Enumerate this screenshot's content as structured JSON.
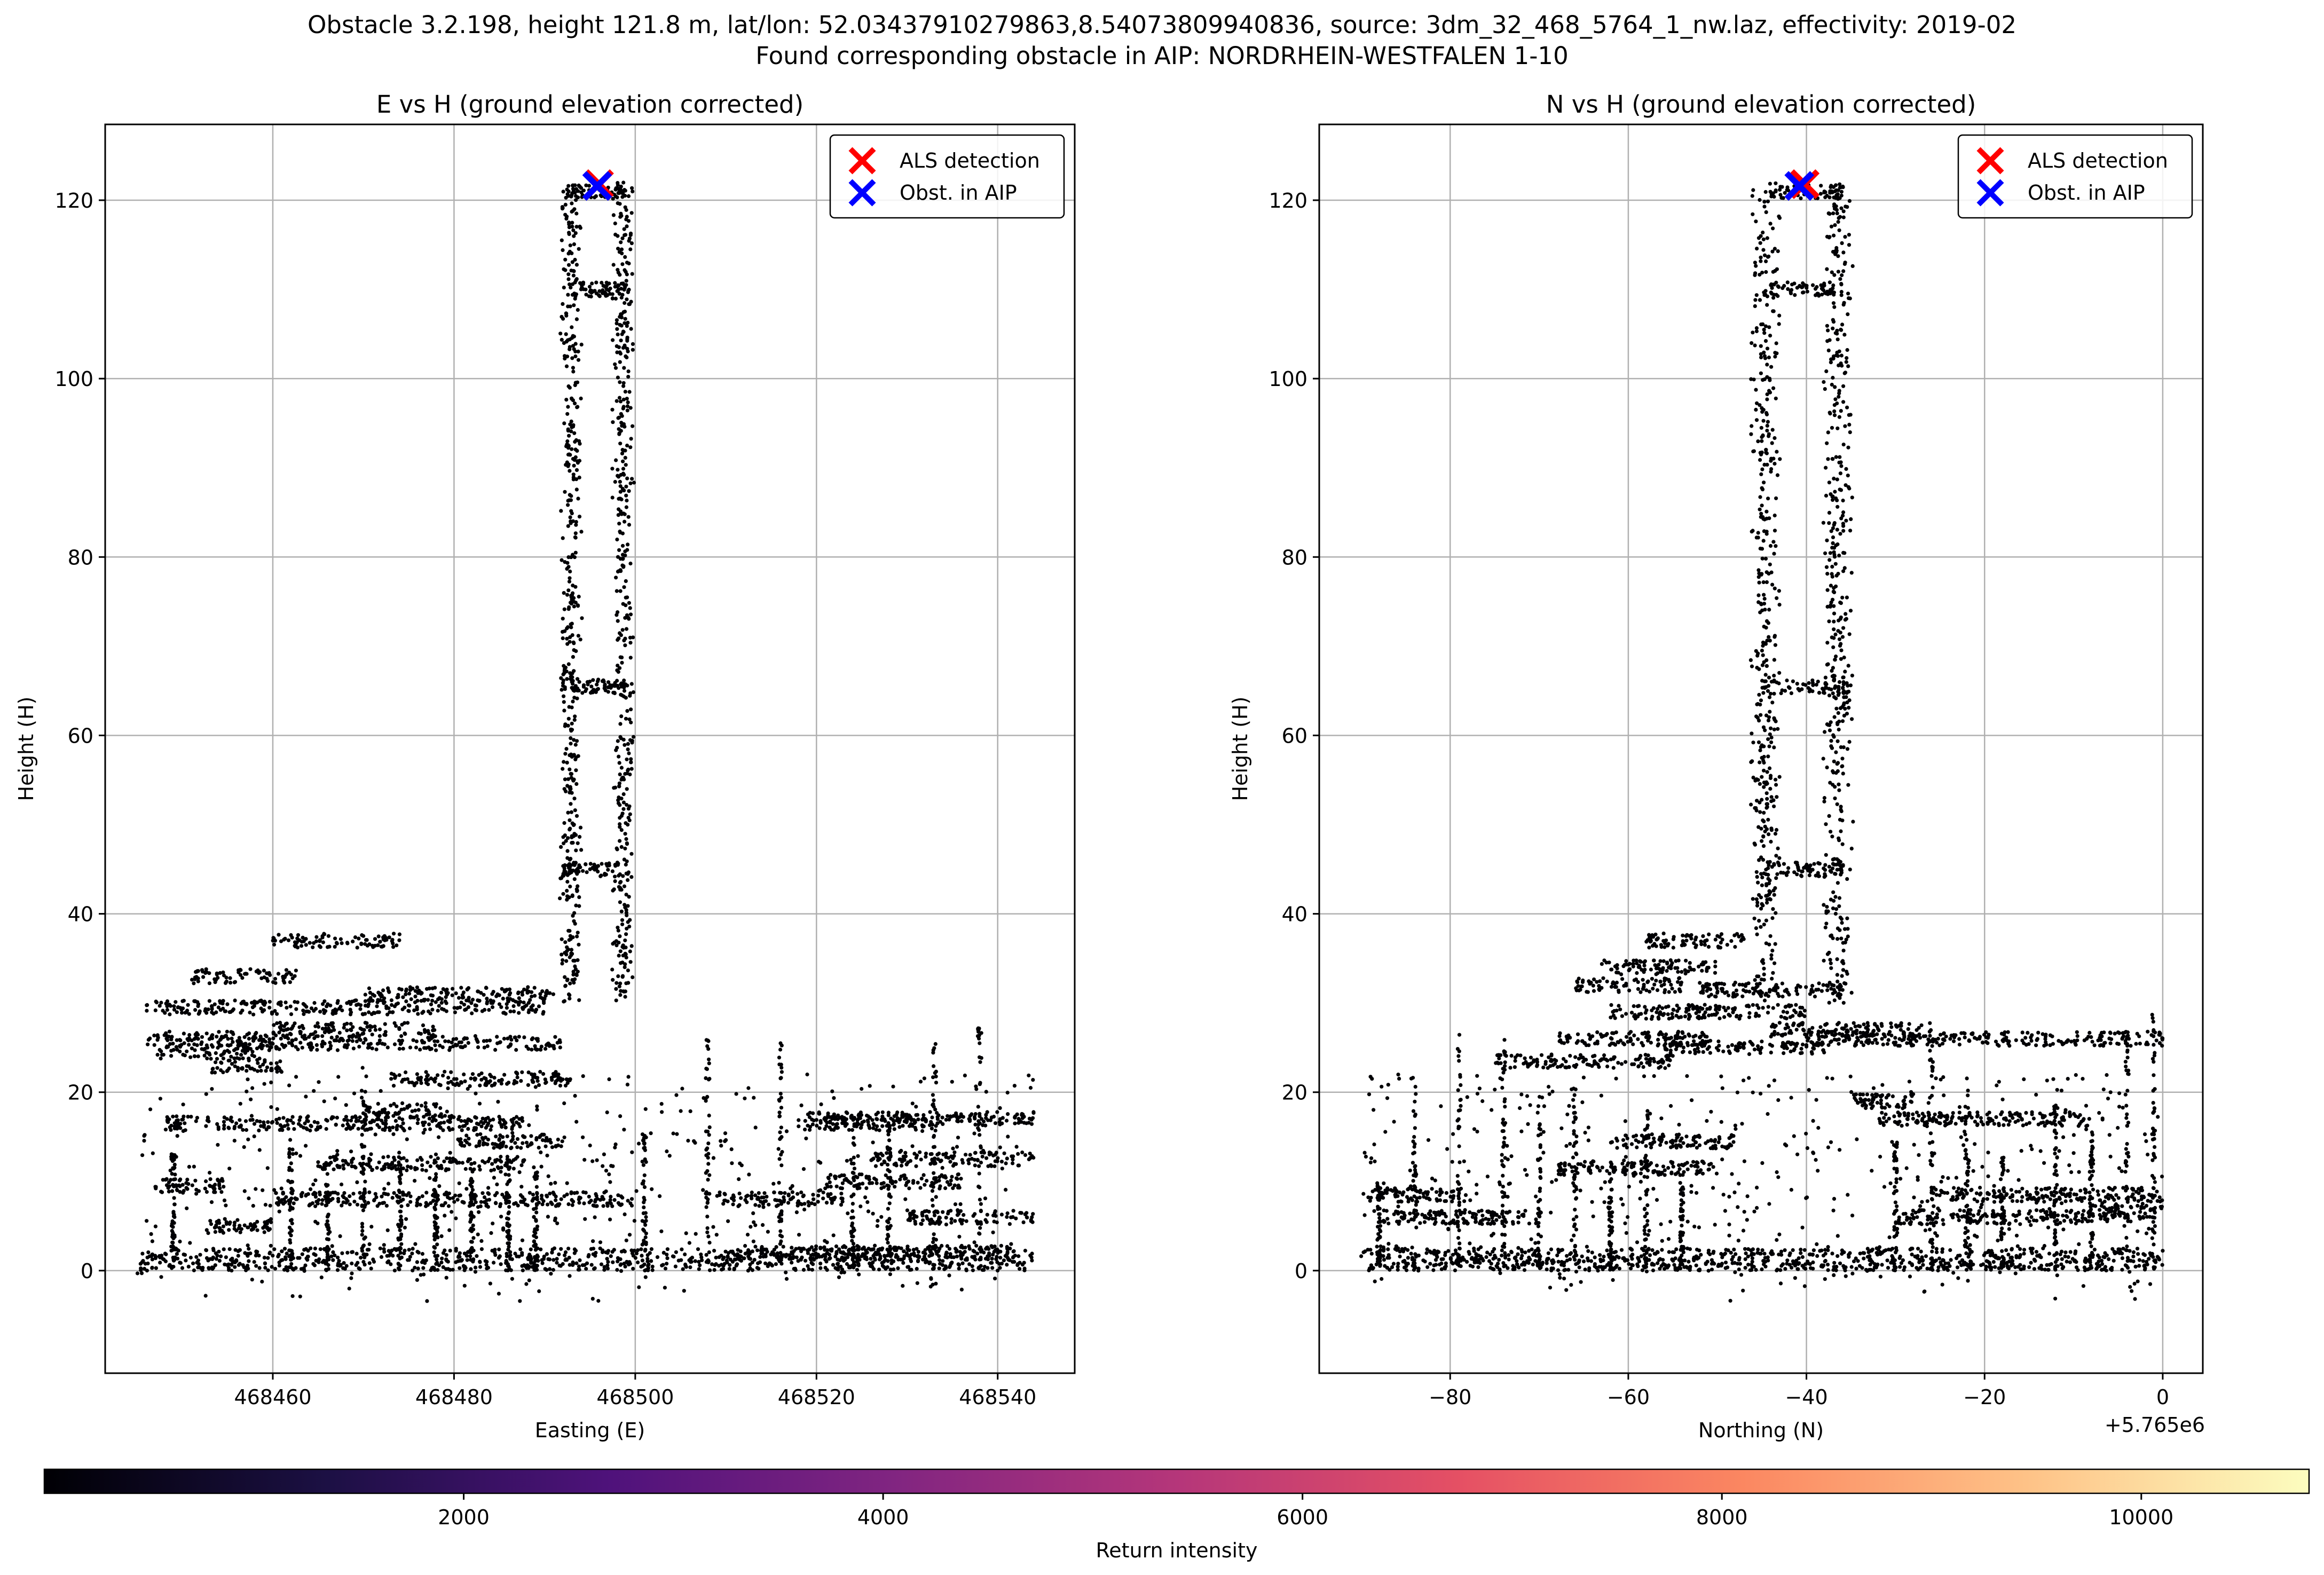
{
  "figure": {
    "suptitle_line1": "Obstacle 3.2.198, height 121.8 m, lat/lon: 52.03437910279863,8.54073809940836, source: 3dm_32_468_5764_1_nw.laz, effectivity: 2019-02",
    "suptitle_line2": "Found corresponding obstacle in AIP: NORDRHEIN-WESTFALEN 1-10"
  },
  "colors": {
    "points": "#000004",
    "als_marker": "#ff0000",
    "aip_marker": "#0000ff",
    "grid": "#b0b0b0",
    "colormap": [
      "#000004",
      "#1c1044",
      "#4f127b",
      "#812581",
      "#b5367a",
      "#e55064",
      "#fb8761",
      "#fec287",
      "#fcfdbf"
    ]
  },
  "colorbar": {
    "label": "Return intensity",
    "range": [
      0,
      10800
    ],
    "ticks": [
      2000,
      4000,
      6000,
      8000,
      10000
    ],
    "tick_labels": [
      "2000",
      "4000",
      "6000",
      "8000",
      "10000"
    ]
  },
  "chart_data": [
    {
      "type": "scatter",
      "title": "E vs H (ground elevation corrected)",
      "xlabel": "Easting (E)",
      "ylabel": "Height (H)",
      "xlim": [
        468441.5,
        468548.5
      ],
      "ylim": [
        -11.5,
        128.5
      ],
      "xticks": [
        468460,
        468480,
        468500,
        468520,
        468540
      ],
      "xtick_labels": [
        "468460",
        "468480",
        "468500",
        "468520",
        "468540"
      ],
      "yticks": [
        0,
        20,
        40,
        60,
        80,
        100,
        120
      ],
      "ytick_labels": [
        "0",
        "20",
        "40",
        "60",
        "80",
        "100",
        "120"
      ],
      "offset_label": "",
      "grid": true,
      "legend": {
        "position": "top-right",
        "entries": [
          "ALS detection",
          "Obst. in AIP"
        ]
      },
      "markers": [
        {
          "series": "ALS detection",
          "x": 468496,
          "y": 121.8
        },
        {
          "series": "Obst. in AIP",
          "x": 468495.8,
          "y": 121.6
        }
      ],
      "structure": {
        "roofs": [
          [
            468446,
            468460,
            26
          ],
          [
            468446,
            468490,
            29.5
          ],
          [
            468447,
            468458,
            24.5
          ],
          [
            468456,
            468492,
            25.5
          ],
          [
            468460,
            468474,
            37
          ],
          [
            468470,
            468491,
            31
          ],
          [
            468451,
            468463,
            33
          ],
          [
            468448,
            468488,
            16.5
          ],
          [
            468453,
            468461,
            23
          ],
          [
            468460,
            468478,
            27
          ],
          [
            468447,
            468455,
            9.5
          ],
          [
            468452,
            468460,
            5
          ],
          [
            468460,
            468500,
            8
          ],
          [
            468465,
            468488,
            12
          ],
          [
            468470,
            468480,
            18
          ],
          [
            468480,
            468492,
            14.5
          ],
          [
            468473,
            468493,
            21.5
          ],
          [
            468519,
            468544,
            17
          ],
          [
            468518,
            468532,
            16.5
          ],
          [
            468526,
            468544,
            12.5
          ],
          [
            468509,
            468523,
            8
          ],
          [
            468521,
            468536,
            10
          ],
          [
            468530,
            468544,
            6
          ],
          [
            468512,
            468542,
            2
          ],
          [
            468493,
            468499,
            65.5
          ],
          [
            468492,
            468499,
            45
          ],
          [
            468493,
            468499,
            110
          ],
          [
            468493,
            468499,
            121
          ]
        ],
        "spans": [
          [
            468445,
            468544
          ]
        ],
        "tower": {
          "center": 468495.8,
          "half_width": 3.2,
          "top": 122
        },
        "walls": [
          468449,
          468462,
          468466,
          468470,
          468474,
          468478,
          468482,
          468486,
          468489,
          468501,
          468508,
          468516,
          468524,
          468528,
          468533,
          468538
        ]
      }
    },
    {
      "type": "scatter",
      "title": "N vs H (ground elevation corrected)",
      "xlabel": "Northing (N)",
      "ylabel": "Height (H)",
      "xlim": [
        -94.7,
        4.5
      ],
      "ylim": [
        -11.5,
        128.5
      ],
      "xticks": [
        -80,
        -60,
        -40,
        -20,
        0
      ],
      "xtick_labels": [
        "−80",
        "−60",
        "−40",
        "−20",
        "0"
      ],
      "yticks": [
        0,
        20,
        40,
        60,
        80,
        100,
        120
      ],
      "ytick_labels": [
        "0",
        "20",
        "40",
        "60",
        "80",
        "100",
        "120"
      ],
      "offset_label": "+5.765e6",
      "grid": true,
      "legend": {
        "position": "top-right",
        "entries": [
          "ALS detection",
          "Obst. in AIP"
        ]
      },
      "markers": [
        {
          "series": "ALS detection",
          "x": -40.2,
          "y": 121.8
        },
        {
          "series": "Obst. in AIP",
          "x": -40.8,
          "y": 121.6
        }
      ],
      "structure": {
        "roofs": [
          [
            -58,
            -47,
            37
          ],
          [
            -63,
            -50,
            34
          ],
          [
            -66,
            -54,
            32
          ],
          [
            -52,
            -36,
            31.5
          ],
          [
            -62,
            -40,
            29
          ],
          [
            -68,
            -51,
            26
          ],
          [
            -44,
            -27,
            27
          ],
          [
            -75,
            -55,
            23.5
          ],
          [
            -56,
            -38,
            25
          ],
          [
            -40,
            -10,
            26
          ],
          [
            -10,
            0,
            26
          ],
          [
            -32,
            -8,
            17
          ],
          [
            -35,
            -28,
            19
          ],
          [
            -62,
            -48,
            14.5
          ],
          [
            -68,
            -50,
            11.5
          ],
          [
            -89,
            -78,
            8.5
          ],
          [
            -88,
            -70,
            6
          ],
          [
            -26,
            0,
            8.5
          ],
          [
            -30,
            -8,
            6
          ],
          [
            -8,
            0,
            6.5
          ],
          [
            -45,
            -35,
            65.5
          ],
          [
            -45,
            -36,
            45
          ],
          [
            -44,
            -36,
            110
          ],
          [
            -43,
            -36,
            121
          ]
        ],
        "spans": [
          [
            -90,
            0
          ]
        ],
        "tower": {
          "center": -40.5,
          "half_width": 4.5,
          "top": 122
        },
        "walls": [
          -88,
          -84,
          -79,
          -74,
          -70,
          -66,
          -62,
          -58,
          -54,
          -30,
          -26,
          -22,
          -18,
          -12,
          -8,
          -4,
          -1
        ]
      }
    }
  ]
}
